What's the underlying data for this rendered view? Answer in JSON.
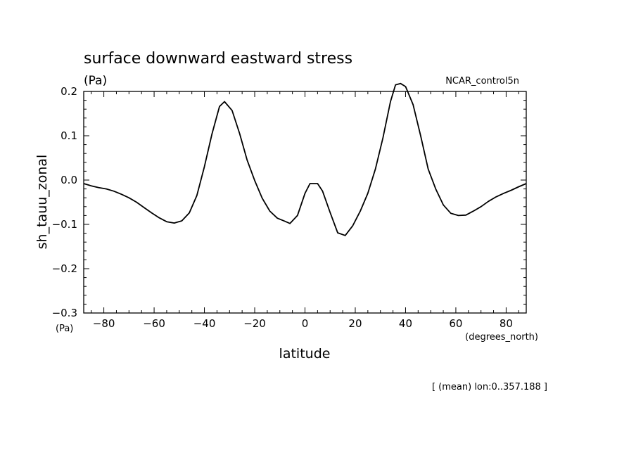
{
  "chart_data": {
    "type": "line",
    "title": "surface downward eastward stress",
    "units_label": "(Pa)",
    "dataset_label": "NCAR_control5n",
    "xlabel": "latitude",
    "ylabel": "sh_tauu_zonal",
    "x_units": "(degrees_north)",
    "y_units": "(Pa)",
    "footer": "[ (mean) lon:0..357.188 ]",
    "xlim": [
      -88,
      88
    ],
    "ylim": [
      -0.3,
      0.2
    ],
    "x_ticks": [
      -80,
      -60,
      -40,
      -20,
      0,
      20,
      40,
      60,
      80
    ],
    "x_tick_labels": [
      "−80",
      "−60",
      "−40",
      "−20",
      "0",
      "20",
      "40",
      "60",
      "80"
    ],
    "y_ticks": [
      -0.3,
      -0.2,
      -0.1,
      0.0,
      0.1,
      0.2
    ],
    "y_tick_labels": [
      "−0.3",
      "−0.2",
      "−0.1",
      "0.0",
      "0.1",
      "0.2"
    ],
    "series": [
      {
        "x": [
          -88,
          -85,
          -82,
          -79,
          -76,
          -73,
          -70,
          -67,
          -64,
          -61,
          -58,
          -55,
          -52,
          -49,
          -46,
          -43,
          -40,
          -37,
          -34,
          -32,
          -29,
          -26,
          -23,
          -20,
          -17,
          -14,
          -11,
          -8,
          -6,
          -3,
          0,
          2,
          5,
          7,
          10,
          13,
          16,
          19,
          22,
          25,
          28,
          31,
          34,
          36,
          38,
          40,
          43,
          46,
          49,
          52,
          55,
          58,
          61,
          64,
          67,
          70,
          73,
          76,
          79,
          82,
          85,
          88
        ],
        "y": [
          -0.008,
          -0.013,
          -0.017,
          -0.02,
          -0.025,
          -0.032,
          -0.04,
          -0.05,
          -0.062,
          -0.074,
          -0.085,
          -0.094,
          -0.097,
          -0.092,
          -0.074,
          -0.035,
          0.03,
          0.104,
          0.166,
          0.177,
          0.157,
          0.105,
          0.045,
          -0.001,
          -0.041,
          -0.07,
          -0.086,
          -0.093,
          -0.098,
          -0.08,
          -0.03,
          -0.008,
          -0.008,
          -0.025,
          -0.073,
          -0.119,
          -0.125,
          -0.103,
          -0.07,
          -0.03,
          0.025,
          0.095,
          0.177,
          0.215,
          0.218,
          0.211,
          0.17,
          0.1,
          0.025,
          -0.02,
          -0.056,
          -0.075,
          -0.08,
          -0.079,
          -0.07,
          -0.06,
          -0.048,
          -0.038,
          -0.03,
          -0.023,
          -0.015,
          -0.008
        ]
      }
    ]
  }
}
